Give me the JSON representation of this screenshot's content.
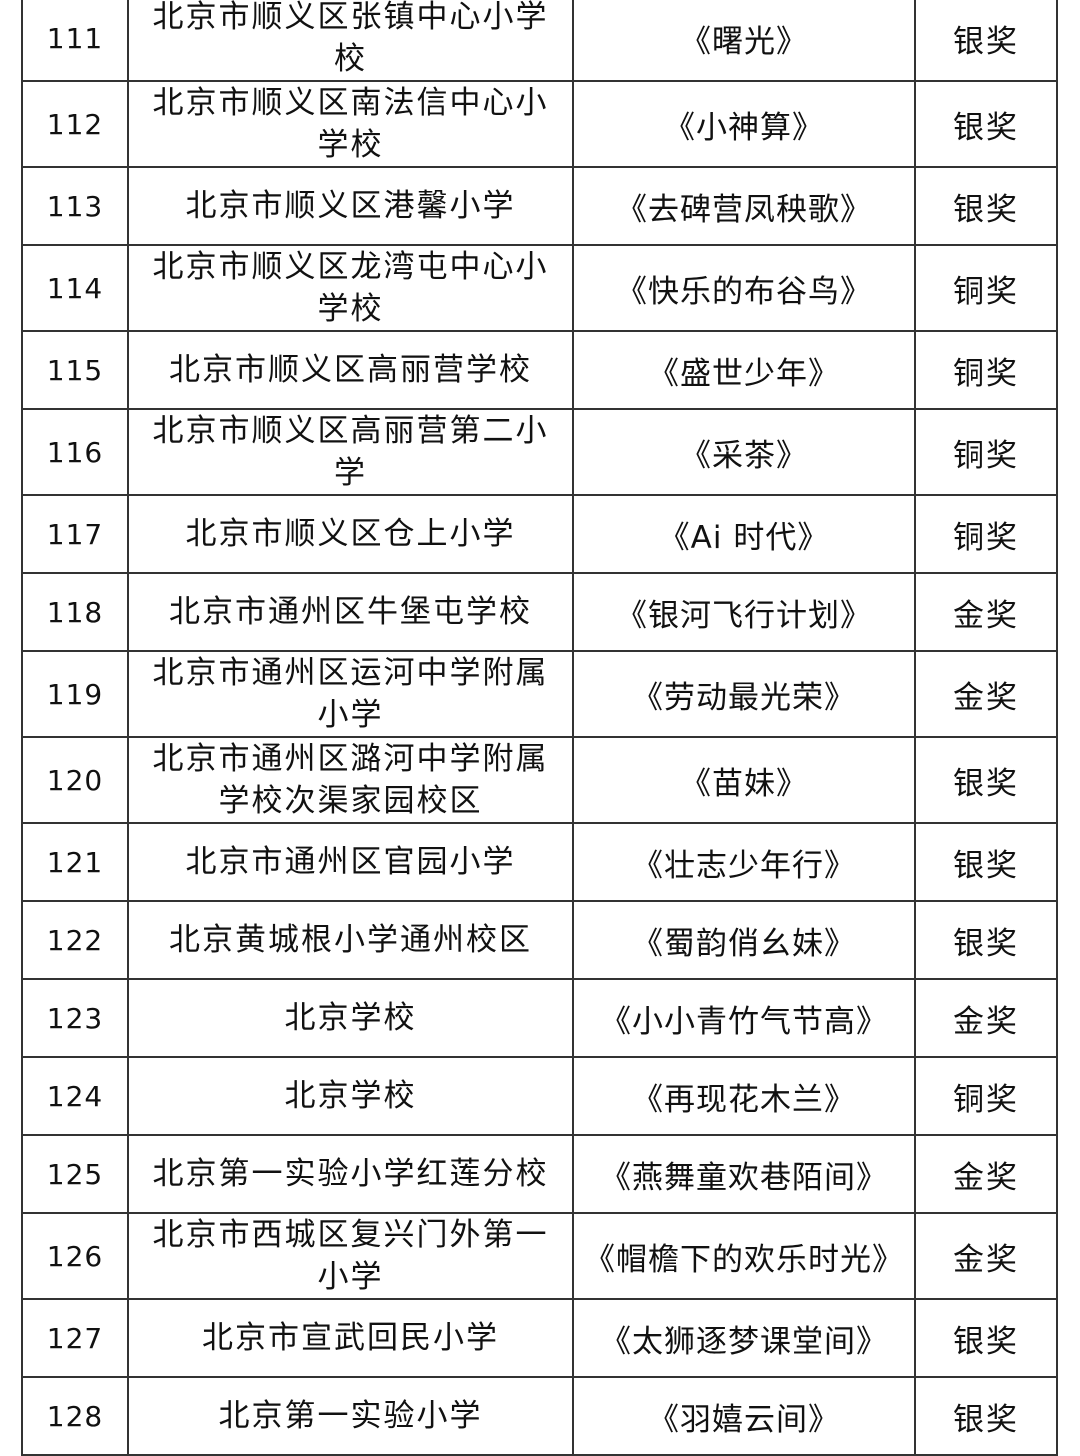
{
  "rows": [
    {
      "no": "111",
      "school": "北京市顺义区张镇中心小学校",
      "work": "《曙光》",
      "award": "银奖"
    },
    {
      "no": "112",
      "school": "北京市顺义区南法信中心小学校",
      "work": "《小神算》",
      "award": "银奖"
    },
    {
      "no": "113",
      "school": "北京市顺义区港馨小学",
      "work": "《去碑营凤秧歌》",
      "award": "银奖"
    },
    {
      "no": "114",
      "school": "北京市顺义区龙湾屯中心小学校",
      "work": "《快乐的布谷鸟》",
      "award": "铜奖"
    },
    {
      "no": "115",
      "school": "北京市顺义区高丽营学校",
      "work": "《盛世少年》",
      "award": "铜奖"
    },
    {
      "no": "116",
      "school": "北京市顺义区高丽营第二小学",
      "work": "《采茶》",
      "award": "铜奖"
    },
    {
      "no": "117",
      "school": "北京市顺义区仓上小学",
      "work": "《Ai 时代》",
      "award": "铜奖"
    },
    {
      "no": "118",
      "school": "北京市通州区牛堡屯学校",
      "work": "《银河飞行计划》",
      "award": "金奖"
    },
    {
      "no": "119",
      "school": "北京市通州区运河中学附属小学",
      "work": "《劳动最光荣》",
      "award": "金奖"
    },
    {
      "no": "120",
      "school": "北京市通州区潞河中学附属学校次渠家园校区",
      "work": "《苗妹》",
      "award": "银奖"
    },
    {
      "no": "121",
      "school": "北京市通州区官园小学",
      "work": "《壮志少年行》",
      "award": "银奖"
    },
    {
      "no": "122",
      "school": "北京黄城根小学通州校区",
      "work": "《蜀韵俏幺妹》",
      "award": "银奖"
    },
    {
      "no": "123",
      "school": "北京学校",
      "work": "《小小青竹气节高》",
      "award": "金奖"
    },
    {
      "no": "124",
      "school": "北京学校",
      "work": "《再现花木兰》",
      "award": "铜奖"
    },
    {
      "no": "125",
      "school": "北京第一实验小学红莲分校",
      "work": "《燕舞童欢巷陌间》",
      "award": "金奖"
    },
    {
      "no": "126",
      "school": "北京市西城区复兴门外第一小学",
      "work": "《帽檐下的欢乐时光》",
      "award": "金奖"
    },
    {
      "no": "127",
      "school": "北京市宣武回民小学",
      "work": "《太狮逐梦课堂间》",
      "award": "银奖"
    },
    {
      "no": "128",
      "school": "北京第一实验小学",
      "work": "《羽嬉云间》",
      "award": "银奖"
    }
  ]
}
